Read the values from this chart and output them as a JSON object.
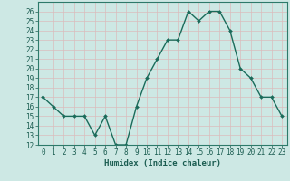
{
  "x": [
    0,
    1,
    2,
    3,
    4,
    5,
    6,
    7,
    8,
    9,
    10,
    11,
    12,
    13,
    14,
    15,
    16,
    17,
    18,
    19,
    20,
    21,
    22,
    23
  ],
  "y": [
    17,
    16,
    15,
    15,
    15,
    13,
    15,
    12,
    12,
    16,
    19,
    21,
    23,
    23,
    26,
    25,
    26,
    26,
    24,
    20,
    19,
    17,
    17,
    15
  ],
  "xlabel": "Humidex (Indice chaleur)",
  "ylim": [
    12,
    27
  ],
  "yticks": [
    12,
    13,
    14,
    15,
    16,
    17,
    18,
    19,
    20,
    21,
    22,
    23,
    24,
    25,
    26
  ],
  "xlim": [
    -0.5,
    23.5
  ],
  "xticks": [
    0,
    1,
    2,
    3,
    4,
    5,
    6,
    7,
    8,
    9,
    10,
    11,
    12,
    13,
    14,
    15,
    16,
    17,
    18,
    19,
    20,
    21,
    22,
    23
  ],
  "line_color": "#1a6b5a",
  "marker_color": "#1a6b5a",
  "bg_color": "#cde8e4",
  "grid_color": "#dbbcbc",
  "axes_color": "#2d7a6a",
  "label_color": "#1a5c50",
  "tick_label_size": 5.5,
  "xlabel_size": 6.5,
  "line_width": 1.0,
  "marker_size": 2.0
}
